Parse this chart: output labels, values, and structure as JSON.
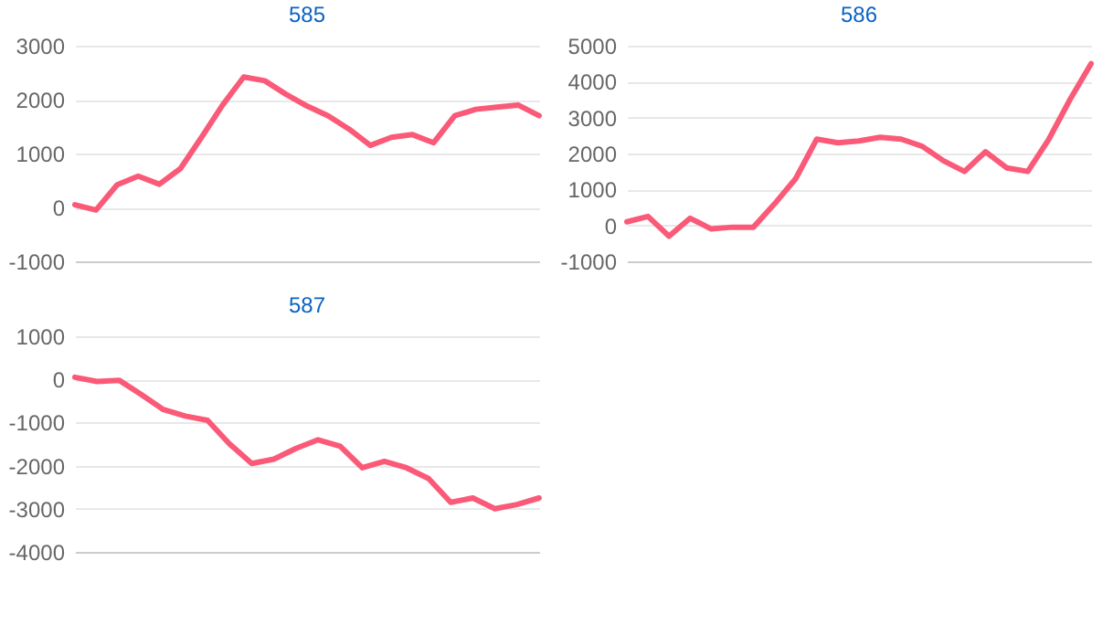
{
  "chart_data": [
    {
      "type": "line",
      "title": "585",
      "categories": [
        null,
        null,
        null,
        null,
        null,
        null,
        null,
        null,
        null,
        null,
        null,
        null,
        null,
        null,
        null,
        null,
        null,
        null,
        null,
        null,
        null,
        null,
        null
      ],
      "series": [
        {
          "color": "#fa5a78",
          "values": [
            50,
            -50,
            420,
            580,
            430,
            720,
            1300,
            1900,
            2420,
            2350,
            2100,
            1880,
            1700,
            1450,
            1150,
            1300,
            1350,
            1200,
            1700,
            1820,
            1860,
            1900,
            1700
          ]
        }
      ],
      "ylim": [
        -1000,
        3000
      ],
      "yticks": [
        -1000,
        0,
        1000,
        2000,
        3000
      ],
      "grid": "y"
    },
    {
      "type": "line",
      "title": "586",
      "categories": [
        null,
        null,
        null,
        null,
        null,
        null,
        null,
        null,
        null,
        null,
        null,
        null,
        null,
        null,
        null,
        null,
        null,
        null,
        null,
        null,
        null,
        null,
        null
      ],
      "series": [
        {
          "color": "#fa5a78",
          "values": [
            100,
            250,
            -300,
            200,
            -100,
            -50,
            -50,
            600,
            1300,
            2400,
            2300,
            2350,
            2450,
            2400,
            2200,
            1800,
            1500,
            2050,
            1600,
            1500,
            2400,
            3500,
            4500
          ]
        }
      ],
      "ylim": [
        -1000,
        5000
      ],
      "yticks": [
        -1000,
        0,
        1000,
        2000,
        3000,
        4000,
        5000
      ],
      "grid": "y"
    },
    {
      "type": "line",
      "title": "587",
      "categories": [
        null,
        null,
        null,
        null,
        null,
        null,
        null,
        null,
        null,
        null,
        null,
        null,
        null,
        null,
        null,
        null,
        null,
        null,
        null,
        null,
        null,
        null
      ],
      "series": [
        {
          "color": "#fa5a78",
          "values": [
            50,
            -50,
            -20,
            -350,
            -700,
            -850,
            -950,
            -1500,
            -1950,
            -1850,
            -1600,
            -1400,
            -1550,
            -2050,
            -1900,
            -2050,
            -2300,
            -2850,
            -2750,
            -3000,
            -2900,
            -2750
          ]
        }
      ],
      "ylim": [
        -4000,
        1000
      ],
      "yticks": [
        -4000,
        -3000,
        -2000,
        -1000,
        0,
        1000
      ],
      "grid": "y"
    }
  ]
}
